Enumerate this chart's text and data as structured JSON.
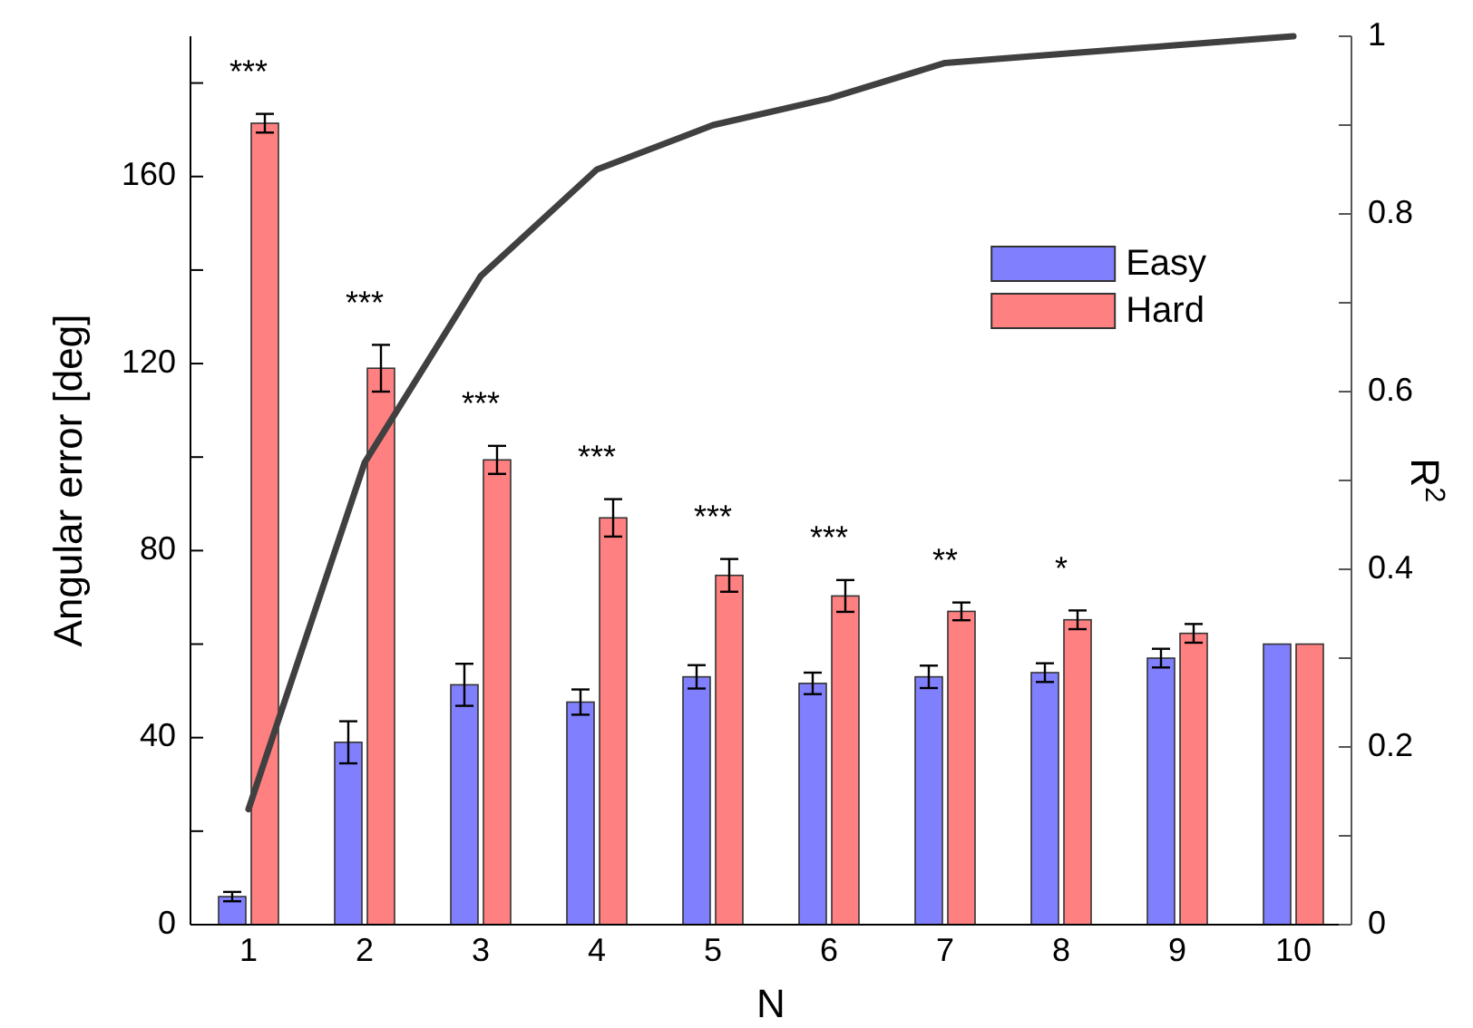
{
  "chart_data": {
    "type": "bar",
    "xlabel": "N",
    "ylabel": "Angular error [deg]",
    "y2label": "R$^{2}$",
    "categories": [
      "1",
      "2",
      "3",
      "4",
      "5",
      "6",
      "7",
      "8",
      "9",
      "10"
    ],
    "series": [
      {
        "name": "Easy",
        "color": "#8080ff",
        "values": [
          6,
          39,
          51.3,
          47.6,
          53,
          51.6,
          53,
          53.9,
          57,
          60
        ],
        "errors": [
          1,
          4.5,
          4.5,
          2.7,
          2.5,
          2.3,
          2.4,
          2,
          2,
          null
        ]
      },
      {
        "name": "Hard",
        "color": "#ff8080",
        "values": [
          171.4,
          119,
          99.4,
          87,
          74.7,
          70.3,
          67,
          65.2,
          62.3,
          60
        ],
        "errors": [
          2,
          5,
          3,
          4,
          3.5,
          3.4,
          1.9,
          2,
          2,
          null
        ]
      },
      {
        "type": "line",
        "axis": "y2",
        "color": "#404040",
        "values": [
          0.13,
          0.52,
          0.73,
          0.85,
          0.9,
          0.93,
          0.97,
          0.98,
          0.99,
          1
        ]
      }
    ],
    "ylim": [
      0,
      190
    ],
    "yticks": [
      0,
      {
        "value": 20,
        "label": null
      },
      40,
      {
        "value": 60,
        "label": null
      },
      80,
      {
        "value": 100,
        "label": null
      },
      120,
      {
        "value": 140,
        "label": null
      },
      160,
      {
        "value": 180,
        "label": null
      }
    ],
    "y2lim": [
      0,
      1
    ],
    "y2ticks": [
      0,
      {
        "value": 0.1,
        "label": null
      },
      0.2,
      {
        "value": 0.3,
        "label": null
      },
      0.4,
      {
        "value": 0.5,
        "label": null
      },
      0.6,
      {
        "value": 0.7,
        "label": null
      },
      0.8,
      {
        "value": 0.9,
        "label": null
      },
      1
    ],
    "annotations": [
      "***",
      "***",
      "***",
      "***",
      "***",
      "***",
      "**",
      "*"
    ],
    "legend": "top right",
    "grid": false,
    "line_style": "solid",
    "marker": "none"
  }
}
